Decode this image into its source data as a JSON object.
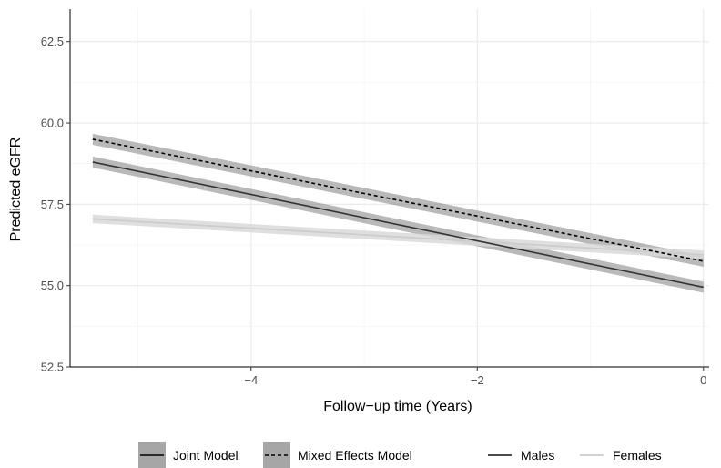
{
  "chart_data": {
    "type": "line",
    "title": "",
    "xlabel": "Follow−up time (Years)",
    "ylabel": "Predicted eGFR",
    "xlim": [
      -5.6,
      0.05
    ],
    "ylim": [
      52.5,
      63.5
    ],
    "x_ticks": [
      {
        "value": -4,
        "label": "−4"
      },
      {
        "value": -2,
        "label": "−2"
      },
      {
        "value": 0,
        "label": "0"
      }
    ],
    "y_ticks": [
      {
        "value": 52.5,
        "label": "52.5"
      },
      {
        "value": 55.0,
        "label": "55.0"
      },
      {
        "value": 57.5,
        "label": "57.5"
      },
      {
        "value": 60.0,
        "label": "60.0"
      },
      {
        "value": 62.5,
        "label": "62.5"
      }
    ],
    "grid": true,
    "legend_position": "bottom",
    "series": [
      {
        "model": "Joint Model",
        "sex": "Males",
        "x": [
          -5.4,
          0
        ],
        "y": [
          58.8,
          54.95
        ],
        "ci_halfwidth": 0.17,
        "color": "#333333",
        "dash": "solid"
      },
      {
        "model": "Mixed Effects Model",
        "sex": "Males",
        "x": [
          -5.4,
          0
        ],
        "y": [
          59.5,
          55.75
        ],
        "ci_halfwidth": 0.17,
        "color": "#000000",
        "dash": "dotted"
      },
      {
        "model": "Joint Model",
        "sex": "Females",
        "x": [
          -5.4,
          0
        ],
        "y": [
          57.05,
          55.95
        ],
        "ci_halfwidth": 0.13,
        "color": "#cccccc",
        "dash": "solid"
      },
      {
        "model": "Mixed Effects Model",
        "sex": "Females",
        "x": [
          -5.4,
          0
        ],
        "y": [
          57.05,
          55.95
        ],
        "ci_halfwidth": 0.13,
        "color": "#cccccc",
        "dash": "dotted"
      }
    ],
    "legend": {
      "model": [
        {
          "label": "Joint Model",
          "dash": "solid"
        },
        {
          "label": "Mixed Effects Model",
          "dash": "dotted"
        }
      ],
      "sex": [
        {
          "label": "Males",
          "color": "#333333"
        },
        {
          "label": "Females",
          "color": "#cccccc"
        }
      ]
    },
    "colors": {
      "panel_background": "#ffffff",
      "grid_major": "#ebebeb",
      "grid_minor": "#f5f5f5",
      "axis_line": "#000000",
      "ribbon_male": "#7f7f7f",
      "ribbon_female": "#d9d9d9"
    }
  }
}
